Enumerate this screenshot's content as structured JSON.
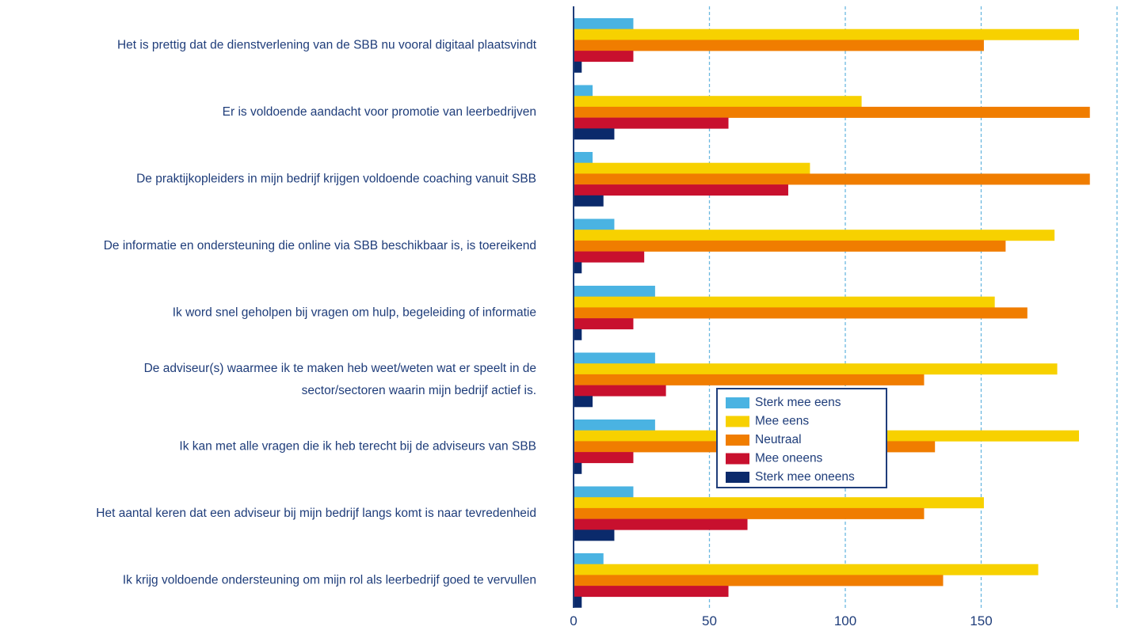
{
  "chart_data": {
    "type": "bar",
    "orientation": "horizontal",
    "categories": [
      [
        "Het is prettig dat de dienstverlening van de SBB nu vooral digitaal plaatsvindt"
      ],
      [
        "Er is voldoende aandacht voor promotie van leerbedrijven"
      ],
      [
        "De praktijkopleiders in mijn bedrijf krijgen voldoende coaching vanuit SBB"
      ],
      [
        "De informatie en ondersteuning die online via SBB beschikbaar is, is toereikend"
      ],
      [
        "Ik word snel geholpen bij vragen om hulp, begeleiding of informatie"
      ],
      [
        "De adviseur(s) waarmee ik te maken heb weet/weten wat er speelt in de",
        "sector/sectoren waarin mijn bedrijf actief is."
      ],
      [
        "Ik kan met alle vragen die ik heb terecht bij de adviseurs van SBB"
      ],
      [
        "Het aantal keren dat een adviseur bij mijn bedrijf langs komt is naar tevredenheid"
      ],
      [
        "Ik krijg voldoende ondersteuning om mijn rol als leerbedrijf goed te vervullen"
      ]
    ],
    "series": [
      {
        "name": "Sterk mee eens",
        "color": "#4ab3e2",
        "values": [
          22,
          7,
          7,
          15,
          30,
          30,
          30,
          22,
          11
        ]
      },
      {
        "name": "Mee eens",
        "color": "#f7d100",
        "values": [
          186,
          106,
          87,
          177,
          155,
          178,
          186,
          151,
          171
        ]
      },
      {
        "name": "Neutraal",
        "color": "#f07d00",
        "values": [
          151,
          190,
          190,
          159,
          167,
          129,
          133,
          129,
          136
        ]
      },
      {
        "name": "Mee oneens",
        "color": "#c8102e",
        "values": [
          22,
          57,
          79,
          26,
          22,
          34,
          22,
          64,
          57
        ]
      },
      {
        "name": "Sterk mee oneens",
        "color": "#0b2a6b",
        "values": [
          3,
          15,
          11,
          3,
          3,
          7,
          3,
          15,
          3
        ]
      }
    ],
    "xlim": [
      0,
      200
    ],
    "xticks": [
      0,
      50,
      100,
      150
    ],
    "grid": "dashed vertical",
    "legend_position": "center-right",
    "title": "",
    "xlabel": "",
    "ylabel": ""
  }
}
